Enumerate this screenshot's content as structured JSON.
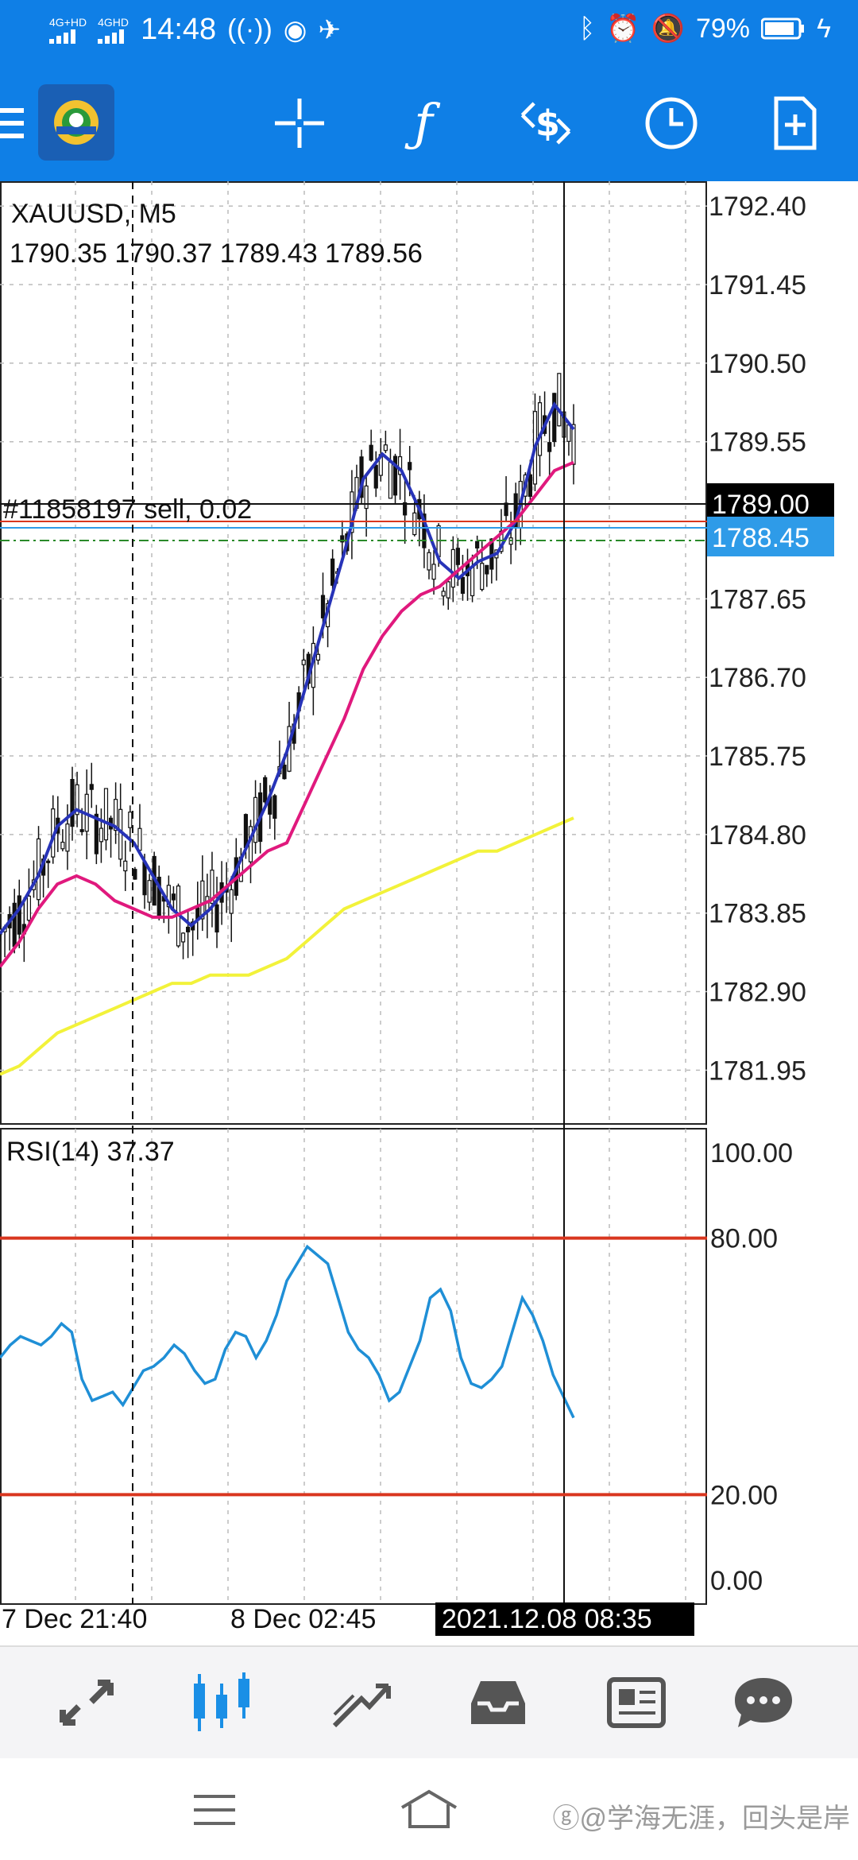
{
  "status_bar": {
    "net1": "4G+HD",
    "net2": "4GHD",
    "time": "14:48",
    "battery": "79%"
  },
  "toolbar": {
    "icons": [
      "menu-icon",
      "mt4-logo",
      "crosshair-icon",
      "function-icon",
      "trade-icon",
      "clock-icon",
      "new-document-icon"
    ]
  },
  "chart": {
    "symbol": "XAUUSD, M5",
    "ohlc": "1790.35 1790.37 1789.43 1789.56",
    "order_label": "#11858197 sell, 0.02",
    "price_axis": [
      "1792.40",
      "1791.45",
      "1790.50",
      "1789.55",
      "1787.65",
      "1786.70",
      "1785.75",
      "1784.80",
      "1783.85",
      "1782.90",
      "1781.95"
    ],
    "crosshair_price": "1789.00",
    "bid_price": "1788.45",
    "rsi_label": "RSI(14) 37.37",
    "rsi_axis": [
      "100.00",
      "80.00",
      "20.00",
      "0.00"
    ],
    "time_axis": [
      "7 Dec 21:40",
      "8 Dec 02:45"
    ],
    "crosshair_time": "2021.12.08 08:35",
    "colors": {
      "ma_fast": "#2733b8",
      "ma_mid": "#e0197d",
      "ma_slow": "#f2f23a",
      "rsi": "#1f8fd6",
      "rsi_levels": "#d9361f",
      "bid_box": "#2e9be8",
      "crosshair_box": "#000000"
    }
  },
  "chart_data": {
    "type": "line",
    "x_ticks": [
      "7 Dec 21:40",
      "8 Dec 02:45"
    ],
    "y_ticks": [
      1792.4,
      1791.45,
      1790.5,
      1789.55,
      1787.65,
      1786.7,
      1785.75,
      1784.8,
      1783.85,
      1782.9,
      1781.95
    ],
    "ylim": [
      1781.3,
      1792.7
    ],
    "series": [
      {
        "values": [
          1783.6,
          1783.9,
          1784.3,
          1784.9,
          1785.1,
          1785.0,
          1784.9,
          1784.7,
          1784.3,
          1783.9,
          1783.7,
          1783.9,
          1784.2,
          1784.7,
          1785.2,
          1785.8,
          1786.6,
          1787.4,
          1788.2,
          1789.1,
          1789.4,
          1789.2,
          1788.7,
          1788.1,
          1787.9,
          1788.1,
          1788.2,
          1788.6,
          1789.5,
          1790.0,
          1789.7
        ]
      },
      {
        "values": [
          1783.2,
          1783.5,
          1783.9,
          1784.2,
          1784.3,
          1784.2,
          1784.0,
          1783.9,
          1783.8,
          1783.8,
          1783.9,
          1784.0,
          1784.2,
          1784.4,
          1784.6,
          1784.7,
          1785.2,
          1785.7,
          1786.2,
          1786.8,
          1787.2,
          1787.5,
          1787.7,
          1787.8,
          1788.0,
          1788.2,
          1788.4,
          1788.6,
          1788.9,
          1789.2,
          1789.3
        ]
      },
      {
        "values": [
          1781.9,
          1782.0,
          1782.2,
          1782.4,
          1782.5,
          1782.6,
          1782.7,
          1782.8,
          1782.9,
          1783.0,
          1783.0,
          1783.1,
          1783.1,
          1783.1,
          1783.2,
          1783.3,
          1783.5,
          1783.7,
          1783.9,
          1784.0,
          1784.1,
          1784.2,
          1784.3,
          1784.4,
          1784.5,
          1784.6,
          1784.6,
          1784.7,
          1784.8,
          1784.9,
          1785.0
        ]
      }
    ],
    "rsi": {
      "ylim": [
        0,
        100
      ],
      "levels": [
        80,
        20
      ],
      "values": [
        52,
        55,
        57,
        56,
        55,
        57,
        60,
        58,
        47,
        42,
        43,
        44,
        41,
        45,
        49,
        50,
        52,
        55,
        53,
        49,
        46,
        47,
        54,
        58,
        57,
        52,
        56,
        62,
        70,
        74,
        78,
        76,
        74,
        66,
        58,
        54,
        52,
        48,
        42,
        44,
        50,
        56,
        66,
        68,
        63,
        52,
        46,
        45,
        47,
        50,
        58,
        66,
        62,
        56,
        48,
        43,
        38
      ]
    }
  }
}
